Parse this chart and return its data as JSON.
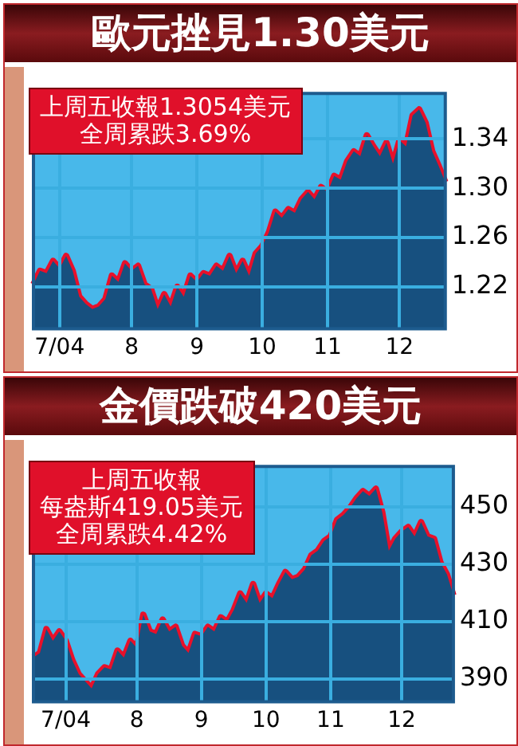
{
  "chart_data": [
    {
      "type": "area",
      "title": "歐元挫見1.30美元",
      "annotations": [
        "上周五收報1.3054美元",
        "全周累跌3.69%"
      ],
      "categories": [
        null,
        null,
        null,
        null,
        "7/04",
        null,
        null,
        null,
        null,
        null,
        null,
        null,
        null,
        null,
        null,
        "8",
        null,
        null,
        null,
        null,
        null,
        null,
        null,
        null,
        null,
        "9",
        null,
        null,
        null,
        null,
        null,
        null,
        null,
        null,
        null,
        "10",
        null,
        null,
        null,
        null,
        null,
        null,
        null,
        null,
        null,
        "11",
        null,
        null,
        null,
        null,
        null,
        null,
        null,
        null,
        null,
        null,
        "12",
        null,
        null,
        null,
        null,
        null,
        null,
        null
      ],
      "series": [
        {
          "type": "area",
          "color": "#17507f",
          "values": [
            1.222,
            1.233,
            1.231,
            1.241,
            1.235,
            1.245,
            1.233,
            1.212,
            1.206,
            1.202,
            1.204,
            1.21,
            1.229,
            1.224,
            1.239,
            1.233,
            1.237,
            1.222,
            1.218,
            1.202,
            1.214,
            1.204,
            1.22,
            1.212,
            1.229,
            1.224,
            1.231,
            1.229,
            1.237,
            1.233,
            1.245,
            1.231,
            1.241,
            1.229,
            1.247,
            1.253,
            1.264,
            1.281,
            1.276,
            1.283,
            1.28,
            1.291,
            1.297,
            1.291,
            1.301,
            1.297,
            1.31,
            1.307,
            1.322,
            1.33,
            1.326,
            1.343,
            1.334,
            1.326,
            1.337,
            1.32,
            1.339,
            1.334,
            1.359,
            1.364,
            1.353,
            1.33,
            1.318,
            1.305
          ]
        },
        {
          "type": "line",
          "color": "#e8102a",
          "values": [
            1.222,
            1.233,
            1.231,
            1.241,
            1.235,
            1.245,
            1.233,
            1.212,
            1.206,
            1.202,
            1.204,
            1.21,
            1.229,
            1.224,
            1.239,
            1.233,
            1.237,
            1.222,
            1.218,
            1.202,
            1.214,
            1.204,
            1.22,
            1.212,
            1.229,
            1.224,
            1.231,
            1.229,
            1.237,
            1.233,
            1.245,
            1.231,
            1.241,
            1.229,
            1.247,
            1.253,
            1.264,
            1.281,
            1.276,
            1.283,
            1.28,
            1.291,
            1.297,
            1.291,
            1.301,
            1.297,
            1.31,
            1.307,
            1.322,
            1.33,
            1.326,
            1.343,
            1.334,
            1.326,
            1.337,
            1.32,
            1.339,
            1.334,
            1.359,
            1.364,
            1.353,
            1.33,
            1.318,
            1.305
          ]
        }
      ],
      "ylim": [
        1.186,
        1.377
      ],
      "yticks": [
        1.22,
        1.26,
        {
          "value": 1.3,
          "label": "1.30"
        },
        1.34
      ],
      "grid": true
    },
    {
      "type": "area",
      "title": "金價跌破420美元",
      "annotations": [
        "上周五收報",
        "每盎斯419.05美元",
        "全周累跌4.42%"
      ],
      "categories": [
        null,
        null,
        null,
        null,
        null,
        "7/04",
        null,
        null,
        null,
        null,
        null,
        null,
        null,
        null,
        null,
        null,
        "8",
        null,
        null,
        null,
        null,
        null,
        null,
        null,
        null,
        null,
        "9",
        null,
        null,
        null,
        null,
        null,
        null,
        null,
        null,
        null,
        "10",
        null,
        null,
        null,
        null,
        null,
        null,
        null,
        null,
        null,
        "11",
        null,
        null,
        null,
        null,
        null,
        null,
        null,
        null,
        null,
        null,
        "12",
        null,
        null,
        null,
        null,
        null,
        null,
        null,
        null
      ],
      "series": [
        {
          "type": "area",
          "color": "#17507f",
          "values": [
            397.4,
            399.0,
            407.3,
            403.2,
            406.5,
            403.2,
            396.5,
            391.6,
            389.1,
            386.6,
            391.6,
            394.0,
            393.2,
            399.8,
            397.4,
            403.2,
            400.7,
            412.3,
            406.5,
            405.6,
            410.6,
            406.5,
            408.1,
            401.5,
            399.0,
            405.6,
            404.8,
            408.1,
            406.5,
            411.4,
            409.8,
            413.9,
            419.7,
            416.4,
            423.0,
            416.4,
            419.7,
            418.1,
            423.0,
            427.2,
            424.7,
            425.5,
            428.0,
            433.0,
            434.6,
            438.0,
            439.6,
            445.4,
            447.1,
            449.6,
            452.9,
            455.4,
            453.7,
            456.2,
            447.9,
            434.6,
            438.8,
            441.3,
            442.9,
            439.6,
            444.6,
            439.6,
            438.8,
            430.5,
            426.4,
            419.1
          ]
        },
        {
          "type": "line",
          "color": "#e8102a",
          "values": [
            397.4,
            399.0,
            407.3,
            403.2,
            406.5,
            403.2,
            396.5,
            391.6,
            389.1,
            386.6,
            391.6,
            394.0,
            393.2,
            399.8,
            397.4,
            403.2,
            400.7,
            412.3,
            406.5,
            405.6,
            410.6,
            406.5,
            408.1,
            401.5,
            399.0,
            405.6,
            404.8,
            408.1,
            406.5,
            411.4,
            409.8,
            413.9,
            419.7,
            416.4,
            423.0,
            416.4,
            419.7,
            418.1,
            423.0,
            427.2,
            424.7,
            425.5,
            428.0,
            433.0,
            434.6,
            438.0,
            439.6,
            445.4,
            447.1,
            449.6,
            452.9,
            455.4,
            453.7,
            456.2,
            447.9,
            434.6,
            438.8,
            441.3,
            442.9,
            439.6,
            444.6,
            439.6,
            438.8,
            430.5,
            426.4,
            419.1
          ]
        }
      ],
      "ylim": [
        382,
        464
      ],
      "yticks": [
        390,
        410,
        430,
        450
      ],
      "grid": true
    }
  ]
}
